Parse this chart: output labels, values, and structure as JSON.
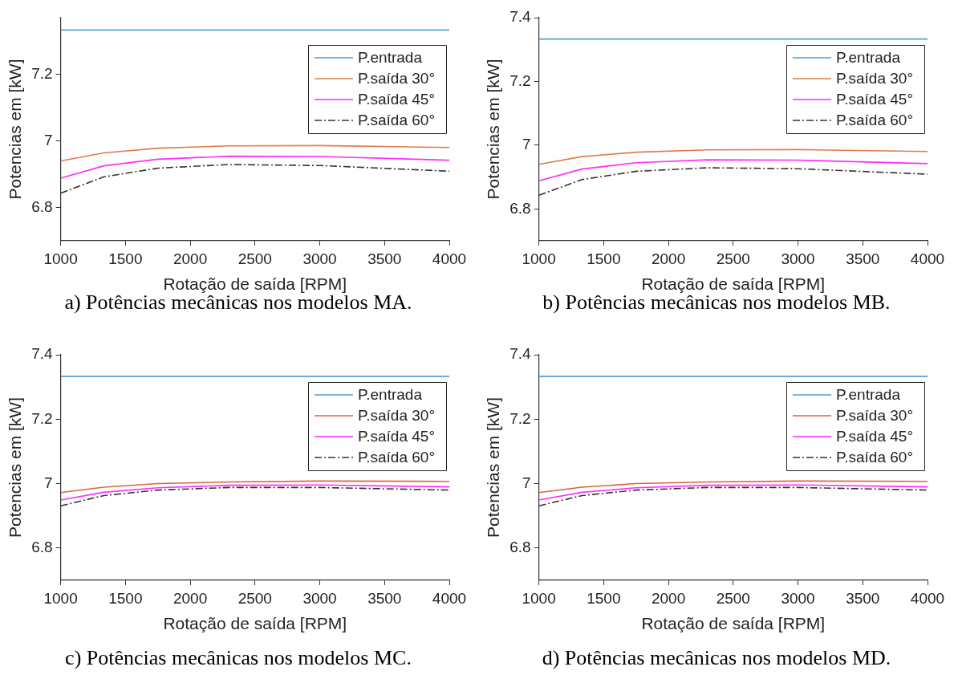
{
  "chart_data": [
    {
      "type": "line",
      "xlabel": "Rotação de saída [RPM]",
      "ylabel": "Potencias em [kW]",
      "annotations": [
        "a) Potências mecânicas nos modelos MA."
      ],
      "x": [
        1000,
        1333,
        1750,
        2300,
        3000,
        4000
      ],
      "xlim": [
        1000,
        4000
      ],
      "xticks": [
        1000,
        1500,
        2000,
        2500,
        3000,
        3500,
        4000
      ],
      "ylim": [
        6.7,
        7.37
      ],
      "yticks": [
        6.8,
        7,
        7.2
      ],
      "legend": "top right",
      "grid": false,
      "series": [
        {
          "name": "P.entrada",
          "color": "#4f9fd8",
          "values": [
            7.333,
            7.333,
            7.333,
            7.333,
            7.333,
            7.333
          ]
        },
        {
          "name": "P.saída 30°",
          "color": "#e07b4a",
          "values": [
            6.94,
            6.964,
            6.978,
            6.985,
            6.986,
            6.98
          ]
        },
        {
          "name": "P.saída 45°",
          "color": "#ff2cff",
          "values": [
            6.888,
            6.925,
            6.945,
            6.954,
            6.953,
            6.942
          ]
        },
        {
          "name": "P.saída 60°",
          "color": "#333333",
          "line_style": "dashdot",
          "values": [
            6.843,
            6.892,
            6.918,
            6.929,
            6.926,
            6.909
          ]
        }
      ]
    },
    {
      "type": "line",
      "xlabel": "Rotação de saída [RPM]",
      "ylabel": "Potencias em [kW]",
      "annotations": [
        "b) Potências mecânicas nos modelos MB."
      ],
      "x": [
        1000,
        1333,
        1750,
        2300,
        3000,
        4000
      ],
      "xlim": [
        1000,
        4000
      ],
      "xticks": [
        1000,
        1500,
        2000,
        2500,
        3000,
        3500,
        4000
      ],
      "ylim": [
        6.7,
        7.4
      ],
      "yticks": [
        6.8,
        7,
        7.2,
        7.4
      ],
      "legend": "top right",
      "grid": false,
      "series": [
        {
          "name": "P.entrada",
          "color": "#4f9fd8",
          "values": [
            7.333,
            7.333,
            7.333,
            7.333,
            7.333,
            7.333
          ]
        },
        {
          "name": "P.saída 30°",
          "color": "#e07b4a",
          "values": [
            6.94,
            6.964,
            6.978,
            6.985,
            6.986,
            6.98
          ]
        },
        {
          "name": "P.saída 45°",
          "color": "#ff2cff",
          "values": [
            6.888,
            6.925,
            6.945,
            6.954,
            6.953,
            6.942
          ]
        },
        {
          "name": "P.saída 60°",
          "color": "#333333",
          "line_style": "dashdot",
          "values": [
            6.843,
            6.892,
            6.918,
            6.929,
            6.926,
            6.909
          ]
        }
      ]
    },
    {
      "type": "line",
      "xlabel": "Rotação de saída [RPM]",
      "ylabel": "Potencias em [kW]",
      "annotations": [
        "c) Potências mecânicas nos modelos MC."
      ],
      "x": [
        1000,
        1333,
        1750,
        2300,
        3000,
        4000
      ],
      "xlim": [
        1000,
        4000
      ],
      "xticks": [
        1000,
        1500,
        2000,
        2500,
        3000,
        3500,
        4000
      ],
      "ylim": [
        6.7,
        7.4
      ],
      "yticks": [
        6.8,
        7,
        7.2,
        7.4
      ],
      "legend": "top right",
      "grid": false,
      "series": [
        {
          "name": "P.entrada",
          "color": "#4f9fd8",
          "values": [
            7.333,
            7.333,
            7.333,
            7.333,
            7.333,
            7.333
          ]
        },
        {
          "name": "P.saída 30°",
          "color": "#d9663f",
          "values": [
            6.972,
            6.989,
            7.0,
            7.005,
            7.008,
            7.007
          ]
        },
        {
          "name": "P.saída 45°",
          "color": "#ff2cff",
          "values": [
            6.949,
            6.973,
            6.987,
            6.995,
            6.996,
            6.99
          ]
        },
        {
          "name": "P.saída 60°",
          "color": "#333333",
          "line_style": "dashdot",
          "values": [
            6.931,
            6.963,
            6.98,
            6.988,
            6.988,
            6.98
          ]
        }
      ]
    },
    {
      "type": "line",
      "xlabel": "Rotação de saída [RPM]",
      "ylabel": "Potencias em [kW]",
      "annotations": [
        "d) Potências mecânicas nos modelos MD."
      ],
      "x": [
        1000,
        1333,
        1750,
        2300,
        3000,
        4000
      ],
      "xlim": [
        1000,
        4000
      ],
      "xticks": [
        1000,
        1500,
        2000,
        2500,
        3000,
        3500,
        4000
      ],
      "ylim": [
        6.7,
        7.4
      ],
      "yticks": [
        6.8,
        7,
        7.2,
        7.4
      ],
      "legend": "top right",
      "grid": false,
      "series": [
        {
          "name": "P.entrada",
          "color": "#4f9fd8",
          "values": [
            7.333,
            7.333,
            7.333,
            7.333,
            7.333,
            7.333
          ]
        },
        {
          "name": "P.saída 30°",
          "color": "#d9663f",
          "values": [
            6.972,
            6.989,
            7.0,
            7.005,
            7.008,
            7.007
          ]
        },
        {
          "name": "P.saída 45°",
          "color": "#ff2cff",
          "values": [
            6.949,
            6.973,
            6.987,
            6.995,
            6.996,
            6.99
          ]
        },
        {
          "name": "P.saída 60°",
          "color": "#333333",
          "line_style": "dashdot",
          "values": [
            6.931,
            6.963,
            6.98,
            6.988,
            6.988,
            6.98
          ]
        }
      ]
    }
  ]
}
